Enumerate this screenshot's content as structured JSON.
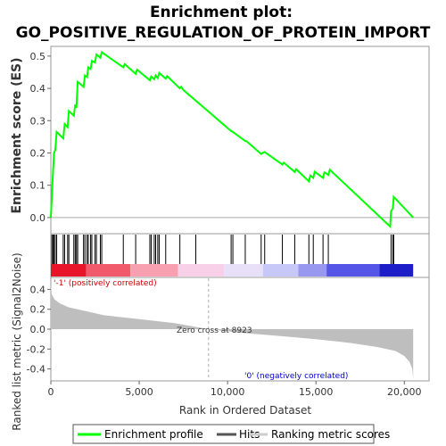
{
  "chart_data": {
    "type": "line",
    "title_line1": "Enrichment plot:",
    "title_line2": "GO_POSITIVE_REGULATION_OF_PROTEIN_IMPORT",
    "es_panel": {
      "ylabel": "Enrichment score (ES)",
      "ylim": [
        -0.05,
        0.53
      ],
      "yticks": [
        "0.0",
        "0.1",
        "0.2",
        "0.3",
        "0.4",
        "0.5"
      ],
      "ytick_values": [
        0.0,
        0.1,
        0.2,
        0.3,
        0.4,
        0.5
      ],
      "series_name": "Enrichment profile",
      "line_color": "#00ff00",
      "points": [
        [
          0,
          0.0
        ],
        [
          60,
          0.07
        ],
        [
          120,
          0.14
        ],
        [
          180,
          0.2
        ],
        [
          250,
          0.21
        ],
        [
          330,
          0.265
        ],
        [
          700,
          0.245
        ],
        [
          780,
          0.29
        ],
        [
          950,
          0.28
        ],
        [
          1020,
          0.33
        ],
        [
          1300,
          0.315
        ],
        [
          1380,
          0.35
        ],
        [
          1450,
          0.34
        ],
        [
          1520,
          0.42
        ],
        [
          1850,
          0.405
        ],
        [
          1930,
          0.44
        ],
        [
          2050,
          0.435
        ],
        [
          2120,
          0.465
        ],
        [
          2250,
          0.46
        ],
        [
          2320,
          0.485
        ],
        [
          2500,
          0.48
        ],
        [
          2580,
          0.505
        ],
        [
          2800,
          0.495
        ],
        [
          2880,
          0.512
        ],
        [
          4100,
          0.465
        ],
        [
          4180,
          0.475
        ],
        [
          4800,
          0.445
        ],
        [
          4880,
          0.458
        ],
        [
          5600,
          0.425
        ],
        [
          5680,
          0.437
        ],
        [
          5850,
          0.428
        ],
        [
          5930,
          0.44
        ],
        [
          6050,
          0.432
        ],
        [
          6130,
          0.448
        ],
        [
          6500,
          0.43
        ],
        [
          6580,
          0.438
        ],
        [
          7300,
          0.4
        ],
        [
          7380,
          0.405
        ],
        [
          7500,
          0.395
        ],
        [
          10200,
          0.268
        ],
        [
          10300,
          0.265
        ],
        [
          11000,
          0.237
        ],
        [
          11080,
          0.236
        ],
        [
          11900,
          0.197
        ],
        [
          11980,
          0.2
        ],
        [
          12100,
          0.203
        ],
        [
          13100,
          0.164
        ],
        [
          13180,
          0.17
        ],
        [
          13800,
          0.141
        ],
        [
          13880,
          0.15
        ],
        [
          14600,
          0.112
        ],
        [
          14680,
          0.13
        ],
        [
          14850,
          0.123
        ],
        [
          14930,
          0.142
        ],
        [
          15400,
          0.123
        ],
        [
          15480,
          0.14
        ],
        [
          15700,
          0.132
        ],
        [
          15780,
          0.148
        ],
        [
          19200,
          -0.028
        ],
        [
          19250,
          0.02
        ],
        [
          19350,
          0.028
        ],
        [
          19400,
          0.064
        ],
        [
          20500,
          0.0
        ]
      ]
    },
    "hits_panel": {
      "label": "Hits",
      "hit_ranks": [
        60,
        120,
        180,
        250,
        330,
        700,
        780,
        950,
        1020,
        1300,
        1380,
        1450,
        1520,
        1850,
        1930,
        2050,
        2120,
        2250,
        2320,
        2500,
        2580,
        2800,
        2880,
        4100,
        4800,
        5600,
        5680,
        5850,
        5930,
        6050,
        6130,
        6500,
        7300,
        8200,
        10200,
        10300,
        11000,
        11900,
        12100,
        13100,
        13800,
        14600,
        14850,
        15400,
        15700,
        19250,
        19350,
        19400
      ]
    },
    "metric_panel": {
      "ylabel": "Ranked list metric (Signal2Noise)",
      "ylim": [
        -0.52,
        0.52
      ],
      "yticks": [
        "-0.4",
        "-0.2",
        "0.0",
        "0.2",
        "0.4"
      ],
      "ytick_values": [
        -0.4,
        -0.2,
        0.0,
        0.2,
        0.4
      ],
      "fill_color": "#bebebe",
      "series_name": "Ranking metric scores",
      "profile": [
        [
          0,
          0.45
        ],
        [
          50,
          0.35
        ],
        [
          200,
          0.3
        ],
        [
          500,
          0.26
        ],
        [
          1000,
          0.22
        ],
        [
          2000,
          0.18
        ],
        [
          3000,
          0.14
        ],
        [
          5000,
          0.1
        ],
        [
          7000,
          0.06
        ],
        [
          8923,
          0.0
        ],
        [
          11000,
          -0.04
        ],
        [
          13000,
          -0.07
        ],
        [
          15000,
          -0.1
        ],
        [
          17000,
          -0.14
        ],
        [
          18500,
          -0.18
        ],
        [
          19500,
          -0.22
        ],
        [
          20000,
          -0.27
        ],
        [
          20300,
          -0.33
        ],
        [
          20450,
          -0.4
        ],
        [
          20500,
          -0.5
        ]
      ],
      "pos_label": "'-1' (positively correlated)",
      "pos_color": "#cc0000",
      "neg_label": "'0' (negatively correlated)",
      "neg_color": "#0000cc",
      "zero_cross_label": "Zero cross at 8923",
      "zero_cross_rank": 8923
    },
    "xlabel": "Rank in Ordered Dataset",
    "xlim": [
      0,
      21400
    ],
    "xticks": [
      "0",
      "5,000",
      "10,000",
      "15,000",
      "20,000"
    ],
    "xtick_values": [
      0,
      5000,
      10000,
      15000,
      20000
    ],
    "list_end": 20500,
    "color_bar": [
      {
        "from": 0,
        "to": 2000,
        "color": "#e8142a"
      },
      {
        "from": 2000,
        "to": 4500,
        "color": "#f05a6a"
      },
      {
        "from": 4500,
        "to": 7200,
        "color": "#f8a0b0"
      },
      {
        "from": 7200,
        "to": 9800,
        "color": "#f8d0e8"
      },
      {
        "from": 9800,
        "to": 12000,
        "color": "#e8e0f8"
      },
      {
        "from": 12000,
        "to": 14000,
        "color": "#c8c8f8"
      },
      {
        "from": 14000,
        "to": 15600,
        "color": "#9898f0"
      },
      {
        "from": 15600,
        "to": 18600,
        "color": "#5555e8"
      },
      {
        "from": 18600,
        "to": 20500,
        "color": "#1e1ec8"
      }
    ],
    "legend": [
      {
        "label": "Enrichment profile",
        "color": "#00ff00",
        "kind": "line"
      },
      {
        "label": "Hits",
        "color": "#555555",
        "kind": "line"
      },
      {
        "label": "Ranking metric scores",
        "color": "#cccccc",
        "kind": "line"
      }
    ]
  }
}
